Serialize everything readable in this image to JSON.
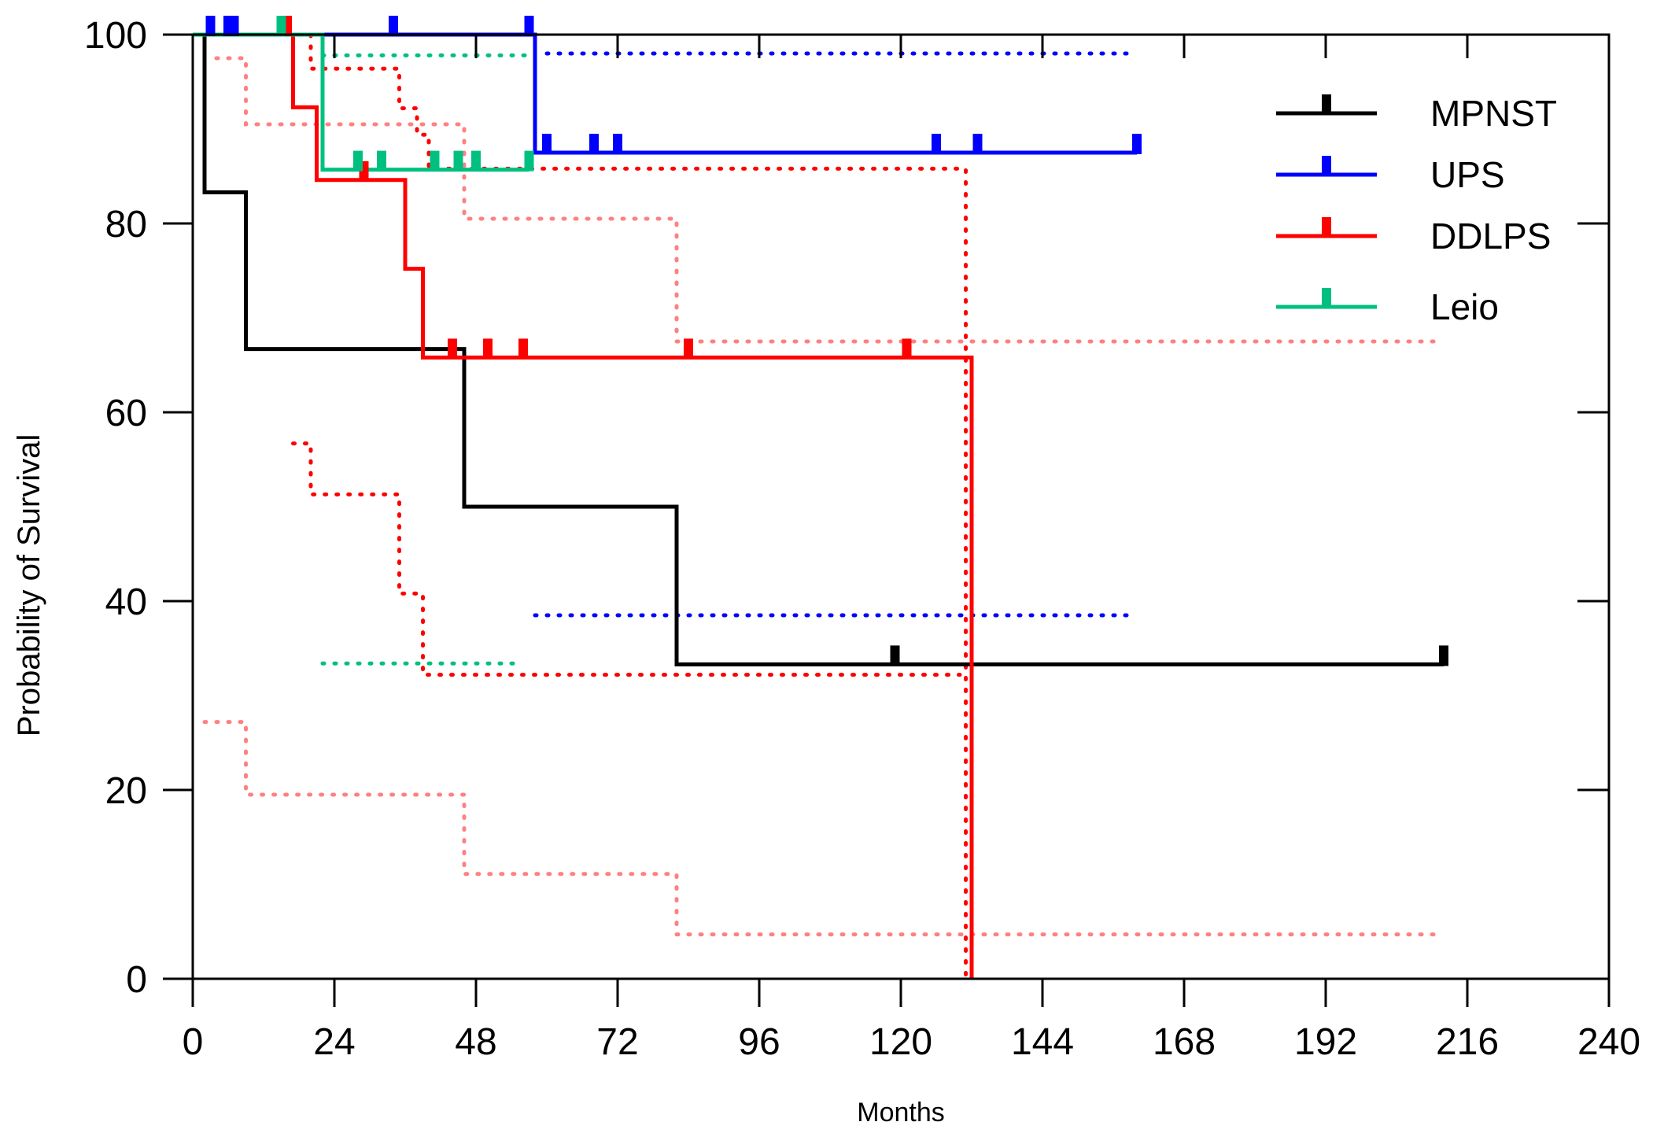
{
  "chart_data": {
    "type": "line",
    "subtype": "kaplan-meier",
    "xlabel": "Months",
    "ylabel": "Probability of Survival",
    "xlim": [
      0,
      240
    ],
    "ylim": [
      0,
      100
    ],
    "xticks": [
      0,
      24,
      48,
      72,
      96,
      120,
      144,
      168,
      192,
      216,
      240
    ],
    "yticks": [
      0,
      20,
      40,
      60,
      80,
      100
    ],
    "grid": false,
    "legend_position": "top-right",
    "series": [
      {
        "name": "MPNST",
        "color": "#000000",
        "steps": [
          [
            0,
            100
          ],
          [
            2,
            100
          ],
          [
            2,
            83.3
          ],
          [
            9,
            83.3
          ],
          [
            9,
            66.7
          ],
          [
            46,
            66.7
          ],
          [
            46,
            50
          ],
          [
            82,
            50
          ],
          [
            82,
            33.3
          ],
          [
            212,
            33.3
          ]
        ],
        "censors": [
          [
            119,
            33.3
          ],
          [
            212,
            33.3
          ]
        ],
        "ci_upper": [],
        "ci_lower": []
      },
      {
        "name": "UPS",
        "color": "#0000ff",
        "ci_color": "#0000ff",
        "steps": [
          [
            0,
            100
          ],
          [
            58,
            100
          ],
          [
            58,
            87.5
          ],
          [
            160,
            87.5
          ]
        ],
        "censors": [
          [
            3,
            100
          ],
          [
            6,
            100
          ],
          [
            7,
            100
          ],
          [
            34,
            100
          ],
          [
            57,
            100
          ],
          [
            60,
            87.5
          ],
          [
            68,
            87.5
          ],
          [
            72,
            87.5
          ],
          [
            126,
            87.5
          ],
          [
            133,
            87.5
          ],
          [
            160,
            87.5
          ]
        ],
        "ci_upper": [
          [
            60,
            98
          ],
          [
            160,
            98
          ]
        ],
        "ci_lower": [
          [
            58,
            38.5
          ],
          [
            160,
            38.5
          ]
        ]
      },
      {
        "name": "DDLPS",
        "color": "#ff0000",
        "ci_color": "#ff0000",
        "steps": [
          [
            0,
            100
          ],
          [
            17,
            100
          ],
          [
            17,
            92.3
          ],
          [
            21,
            92.3
          ],
          [
            21,
            84.6
          ],
          [
            36,
            84.6
          ],
          [
            36,
            75.2
          ],
          [
            39,
            75.2
          ],
          [
            39,
            65.8
          ],
          [
            132,
            65.8
          ],
          [
            132,
            0
          ]
        ],
        "censors": [
          [
            16,
            100
          ],
          [
            29,
            84.6
          ],
          [
            44,
            65.8
          ],
          [
            50,
            65.8
          ],
          [
            56,
            65.8
          ],
          [
            84,
            65.8
          ],
          [
            121,
            65.8
          ]
        ],
        "ci_upper": [
          [
            18,
            100
          ],
          [
            20,
            100
          ],
          [
            20,
            96.4
          ],
          [
            35,
            96.4
          ],
          [
            35,
            92.2
          ],
          [
            38,
            92.2
          ],
          [
            38,
            89.4
          ],
          [
            40,
            89.4
          ],
          [
            40,
            85.8
          ],
          [
            131,
            85.8
          ],
          [
            131,
            0
          ]
        ],
        "ci_lower": [
          [
            17,
            56.7
          ],
          [
            20,
            56.7
          ],
          [
            20,
            51.3
          ],
          [
            35,
            51.3
          ],
          [
            35,
            40.8
          ],
          [
            39,
            40.8
          ],
          [
            39,
            32.2
          ],
          [
            130,
            32.2
          ]
        ]
      },
      {
        "name": "Leio",
        "color": "#00c080",
        "ci_color": "#00c080",
        "steps": [
          [
            0,
            100
          ],
          [
            22,
            100
          ],
          [
            22,
            85.7
          ],
          [
            57,
            85.7
          ]
        ],
        "censors": [
          [
            15,
            100
          ],
          [
            28,
            85.7
          ],
          [
            32,
            85.7
          ],
          [
            41,
            85.7
          ],
          [
            45,
            85.7
          ],
          [
            48,
            85.7
          ],
          [
            57,
            85.7
          ]
        ],
        "ci_upper": [
          [
            22,
            97.8
          ],
          [
            57,
            97.8
          ]
        ],
        "ci_lower": [
          [
            22,
            33.4
          ],
          [
            56,
            33.4
          ]
        ]
      },
      {
        "name": "MPNST CI",
        "color": "#ff8080",
        "ci_color": "#ff8080",
        "steps": [],
        "censors": [],
        "ci_upper": [
          [
            4,
            97.5
          ],
          [
            9,
            97.5
          ],
          [
            9,
            90.5
          ],
          [
            46,
            90.5
          ],
          [
            46,
            80.5
          ],
          [
            82,
            80.5
          ],
          [
            82,
            67.5
          ],
          [
            212,
            67.5
          ]
        ],
        "ci_lower": [
          [
            2,
            27.2
          ],
          [
            9,
            27.2
          ],
          [
            9,
            19.5
          ],
          [
            46,
            19.5
          ],
          [
            46,
            11.1
          ],
          [
            82,
            11.1
          ],
          [
            82,
            4.7
          ],
          [
            212,
            4.7
          ]
        ]
      }
    ],
    "legend": [
      {
        "label": "MPNST",
        "color": "#000000"
      },
      {
        "label": "UPS",
        "color": "#0000ff"
      },
      {
        "label": "DDLPS",
        "color": "#ff0000"
      },
      {
        "label": "Leio",
        "color": "#00c080"
      }
    ]
  }
}
